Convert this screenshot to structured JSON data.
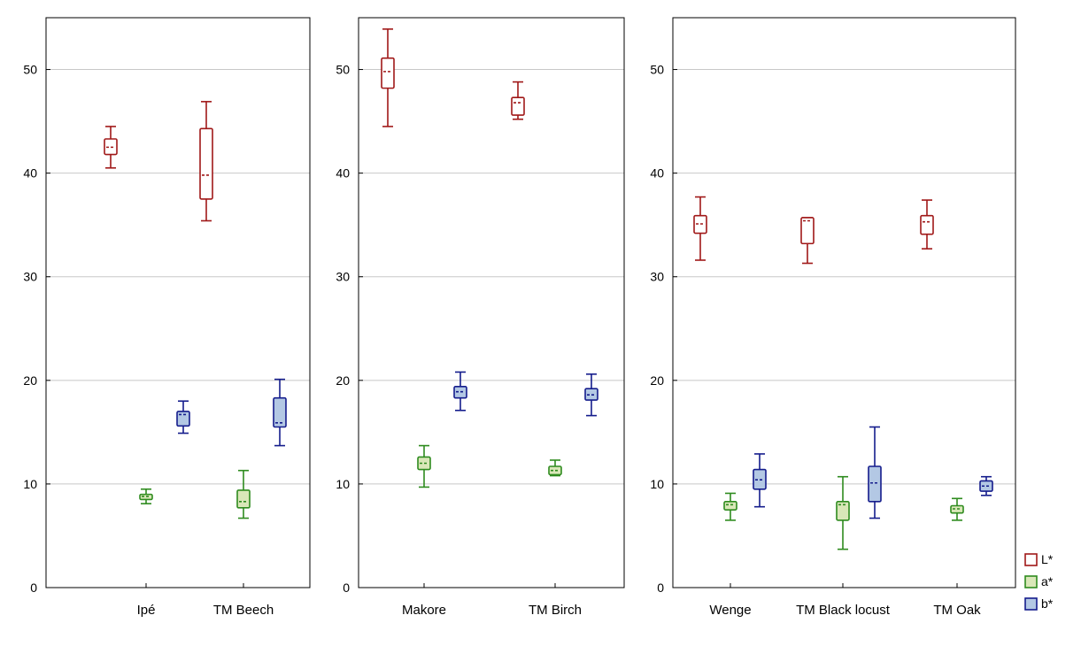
{
  "chart_data": [
    {
      "type": "box",
      "panel": "left",
      "ylim": [
        0,
        55
      ],
      "yticks": [
        0,
        10,
        20,
        30,
        40,
        50
      ],
      "grid": true,
      "categories": [
        "Ipé",
        "TM Beech"
      ],
      "series": [
        {
          "name": "L*",
          "boxes": [
            {
              "min": 40.5,
              "q1": 41.8,
              "median": 42.5,
              "q3": 43.3,
              "max": 44.5
            },
            {
              "min": 35.4,
              "q1": 37.5,
              "median": 39.8,
              "q3": 44.3,
              "max": 46.9
            }
          ]
        },
        {
          "name": "a*",
          "boxes": [
            {
              "min": 8.1,
              "q1": 8.5,
              "median": 8.8,
              "q3": 9.0,
              "max": 9.5
            },
            {
              "min": 6.7,
              "q1": 7.7,
              "median": 8.3,
              "q3": 9.4,
              "max": 11.3
            }
          ]
        },
        {
          "name": "b*",
          "boxes": [
            {
              "min": 14.9,
              "q1": 15.6,
              "median": 16.7,
              "q3": 17.0,
              "max": 18.0
            },
            {
              "min": 13.7,
              "q1": 15.5,
              "median": 15.9,
              "q3": 18.3,
              "max": 20.1
            }
          ]
        }
      ]
    },
    {
      "type": "box",
      "panel": "middle",
      "ylim": [
        0,
        55
      ],
      "yticks": [
        0,
        10,
        20,
        30,
        40,
        50
      ],
      "grid": true,
      "categories": [
        "Makore",
        "TM Birch"
      ],
      "series": [
        {
          "name": "L*",
          "boxes": [
            {
              "min": 44.5,
              "q1": 48.2,
              "median": 49.8,
              "q3": 51.1,
              "max": 53.9
            },
            {
              "min": 45.2,
              "q1": 45.6,
              "median": 46.8,
              "q3": 47.3,
              "max": 48.8
            }
          ]
        },
        {
          "name": "a*",
          "boxes": [
            {
              "min": 9.7,
              "q1": 11.4,
              "median": 12.0,
              "q3": 12.6,
              "max": 13.7
            },
            {
              "min": 10.8,
              "q1": 10.9,
              "median": 11.3,
              "q3": 11.7,
              "max": 12.3
            }
          ]
        },
        {
          "name": "b*",
          "boxes": [
            {
              "min": 17.1,
              "q1": 18.3,
              "median": 18.9,
              "q3": 19.4,
              "max": 20.8
            },
            {
              "min": 16.6,
              "q1": 18.1,
              "median": 18.6,
              "q3": 19.2,
              "max": 20.6
            }
          ]
        }
      ]
    },
    {
      "type": "box",
      "panel": "right",
      "ylim": [
        0,
        55
      ],
      "yticks": [
        0,
        10,
        20,
        30,
        40,
        50
      ],
      "grid": true,
      "categories": [
        "Wenge",
        "TM Black locust",
        "TM Oak"
      ],
      "series": [
        {
          "name": "L*",
          "boxes": [
            {
              "min": 31.6,
              "q1": 34.2,
              "median": 35.1,
              "q3": 35.9,
              "max": 37.7
            },
            {
              "min": 31.3,
              "q1": 33.2,
              "median": 35.4,
              "q3": 35.7,
              "max": 35.7
            },
            {
              "min": 32.7,
              "q1": 34.1,
              "median": 35.3,
              "q3": 35.9,
              "max": 37.4
            }
          ]
        },
        {
          "name": "a*",
          "boxes": [
            {
              "min": 6.5,
              "q1": 7.5,
              "median": 8.0,
              "q3": 8.3,
              "max": 9.1
            },
            {
              "min": 3.7,
              "q1": 6.5,
              "median": 8.0,
              "q3": 8.3,
              "max": 10.7
            },
            {
              "min": 6.5,
              "q1": 7.2,
              "median": 7.6,
              "q3": 7.9,
              "max": 8.6
            }
          ]
        },
        {
          "name": "b*",
          "boxes": [
            {
              "min": 7.8,
              "q1": 9.5,
              "median": 10.4,
              "q3": 11.4,
              "max": 12.9
            },
            {
              "min": 6.7,
              "q1": 8.3,
              "median": 10.1,
              "q3": 11.7,
              "max": 15.5
            },
            {
              "min": 8.9,
              "q1": 9.3,
              "median": 9.8,
              "q3": 10.3,
              "max": 10.7
            }
          ]
        }
      ]
    }
  ],
  "legend": {
    "position": "bottom-right",
    "items": [
      {
        "label": "L*",
        "stroke": "#a01818",
        "fill": "#ffffff"
      },
      {
        "label": "a*",
        "stroke": "#2e8b1e",
        "fill": "#d9e7b8"
      },
      {
        "label": "b*",
        "stroke": "#141c8c",
        "fill": "#b3c8e4"
      }
    ]
  },
  "colors": {
    "L*": {
      "stroke": "#a01818",
      "fill": "#ffffff"
    },
    "a*": {
      "stroke": "#2e8b1e",
      "fill": "#d9e7b8"
    },
    "b*": {
      "stroke": "#141c8c",
      "fill": "#b3c8e4"
    },
    "grid": "#c8c8c8",
    "axis": "#000000"
  }
}
